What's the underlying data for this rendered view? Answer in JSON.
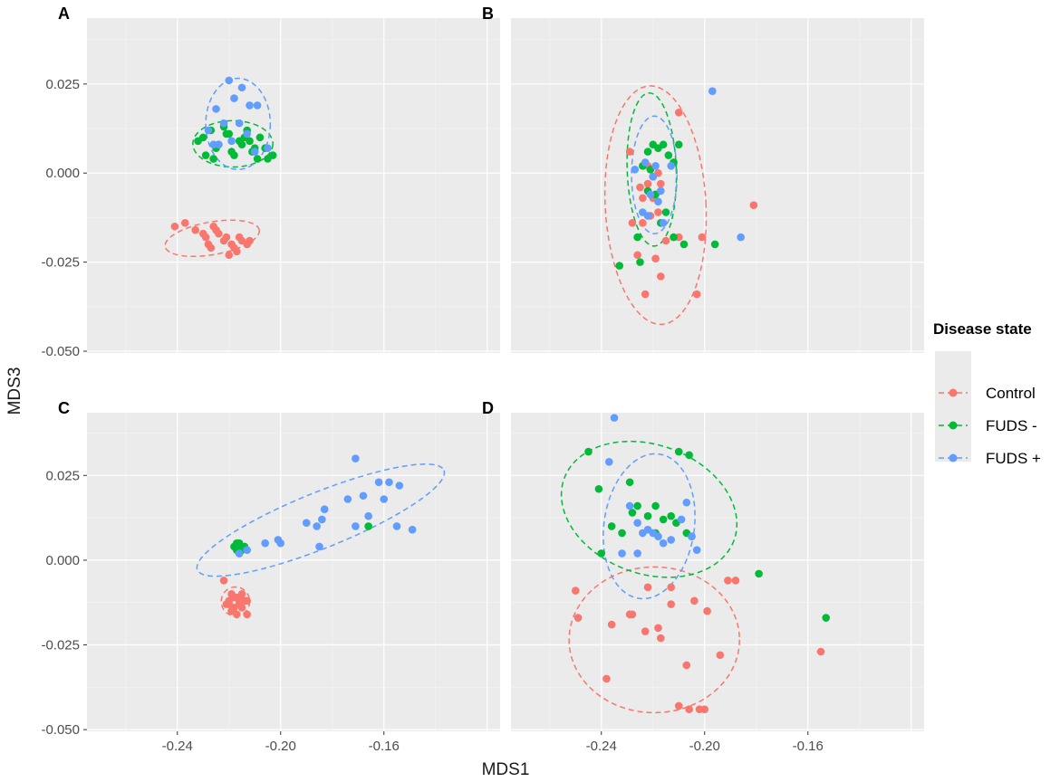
{
  "chart_data": {
    "type": "scatter",
    "xlabel": "MDS1",
    "ylabel": "MDS3",
    "xlim": [
      -0.275,
      -0.115
    ],
    "ylim": [
      -0.0505,
      0.0435
    ],
    "x_ticks": [
      -0.24,
      -0.2,
      -0.16
    ],
    "x_tick_labels": [
      "-0.24",
      "-0.20",
      "-0.16"
    ],
    "y_ticks": [
      0.025,
      0.0,
      -0.025,
      -0.05
    ],
    "y_tick_labels": [
      "0.025",
      "0.000",
      "-0.025",
      "-0.050"
    ],
    "grid": true,
    "ellipse_style": "dashed",
    "legend": {
      "title": "Disease state",
      "position": "right",
      "entries": [
        {
          "name": "Control",
          "color": "#F8766D"
        },
        {
          "name": "FUDS -",
          "color": "#00BA38"
        },
        {
          "name": "FUDS +",
          "color": "#619CFF"
        }
      ]
    },
    "panels": [
      {
        "tag": "A",
        "series": [
          {
            "name": "Control",
            "x": [
              -0.241,
              -0.237,
              -0.233,
              -0.229,
              -0.226,
              -0.227,
              -0.222,
              -0.219,
              -0.216,
              -0.213,
              -0.22,
              -0.224,
              -0.218,
              -0.215,
              -0.212,
              -0.228,
              -0.23,
              -0.221,
              -0.217,
              -0.225
            ],
            "y": [
              -0.015,
              -0.014,
              -0.016,
              -0.018,
              -0.015,
              -0.021,
              -0.019,
              -0.02,
              -0.018,
              -0.02,
              -0.023,
              -0.017,
              -0.021,
              -0.019,
              -0.019,
              -0.02,
              -0.017,
              -0.018,
              -0.022,
              -0.016
            ],
            "ellipse": {
              "cx": -0.2265,
              "cy": -0.0183,
              "rx": 0.0185,
              "ry": 0.0046,
              "angle_deg": -10
            }
          },
          {
            "name": "FUDS -",
            "x": [
              -0.23,
              -0.227,
              -0.224,
              -0.221,
              -0.219,
              -0.216,
              -0.213,
              -0.21,
              -0.208,
              -0.205,
              -0.203,
              -0.229,
              -0.226,
              -0.222,
              -0.218,
              -0.215,
              -0.212,
              -0.209,
              -0.206,
              -0.232,
              -0.225,
              -0.22,
              -0.214,
              -0.211
            ],
            "y": [
              0.01,
              0.012,
              0.008,
              0.011,
              0.006,
              0.009,
              0.012,
              0.007,
              0.01,
              0.004,
              0.005,
              0.005,
              0.004,
              0.013,
              0.005,
              0.008,
              0.009,
              0.004,
              0.007,
              0.009,
              0.007,
              0.011,
              0.01,
              0.006
            ],
            "ellipse": {
              "cx": -0.2185,
              "cy": 0.0082,
              "rx": 0.0155,
              "ry": 0.0065,
              "angle_deg": 0
            }
          },
          {
            "name": "FUDS +",
            "x": [
              -0.22,
              -0.215,
              -0.225,
              -0.218,
              -0.212,
              -0.209,
              -0.228,
              -0.222,
              -0.216,
              -0.213,
              -0.21,
              -0.205,
              -0.224,
              -0.219,
              -0.226
            ],
            "y": [
              0.026,
              0.024,
              0.018,
              0.021,
              0.019,
              0.019,
              0.012,
              0.014,
              0.014,
              0.011,
              0.006,
              0.007,
              0.008,
              0.009,
              0.008
            ],
            "ellipse": {
              "cx": -0.2165,
              "cy": 0.0138,
              "rx": 0.0125,
              "ry": 0.0128,
              "angle_deg": 0
            }
          }
        ]
      },
      {
        "tag": "B",
        "series": [
          {
            "name": "Control",
            "x": [
              -0.181,
              -0.21,
              -0.229,
              -0.225,
              -0.222,
              -0.22,
              -0.218,
              -0.221,
              -0.224,
              -0.215,
              -0.219,
              -0.217,
              -0.226,
              -0.223,
              -0.21,
              -0.203,
              -0.201,
              -0.222,
              -0.218,
              -0.22,
              -0.217,
              -0.224,
              -0.228
            ],
            "y": [
              -0.009,
              0.017,
              0.006,
              -0.004,
              -0.003,
              -0.007,
              -0.011,
              -0.012,
              -0.014,
              -0.019,
              -0.024,
              -0.029,
              -0.023,
              -0.034,
              -0.018,
              -0.034,
              -0.018,
              0.002,
              0.0,
              -0.001,
              -0.003,
              -0.007,
              -0.014
            ],
            "ellipse": {
              "cx": -0.219,
              "cy": -0.009,
              "rx": 0.0195,
              "ry": 0.0335,
              "angle_deg": -3
            }
          },
          {
            "name": "FUDS -",
            "x": [
              -0.233,
              -0.225,
              -0.222,
              -0.22,
              -0.218,
              -0.216,
              -0.214,
              -0.212,
              -0.21,
              -0.221,
              -0.224,
              -0.219,
              -0.222,
              -0.217,
              -0.215,
              -0.226,
              -0.208,
              -0.196,
              -0.212
            ],
            "y": [
              -0.026,
              -0.025,
              0.006,
              0.008,
              0.007,
              0.008,
              0.005,
              0.003,
              0.008,
              0.001,
              0.002,
              -0.006,
              -0.005,
              -0.014,
              -0.011,
              -0.018,
              -0.02,
              -0.02,
              -0.018
            ],
            "ellipse": {
              "cx": -0.2205,
              "cy": 0.001,
              "rx": 0.0095,
              "ry": 0.0215,
              "angle_deg": -2
            }
          },
          {
            "name": "FUDS +",
            "x": [
              -0.197,
              -0.186,
              -0.227,
              -0.223,
              -0.219,
              -0.217,
              -0.221,
              -0.218,
              -0.224,
              -0.216,
              -0.213,
              -0.22,
              -0.222
            ],
            "y": [
              0.023,
              -0.018,
              0.001,
              0.003,
              0.002,
              -0.005,
              -0.006,
              -0.008,
              -0.011,
              -0.014,
              0.002,
              -0.001,
              -0.012
            ],
            "ellipse": {
              "cx": -0.2195,
              "cy": -0.0005,
              "rx": 0.0088,
              "ry": 0.0165,
              "angle_deg": 0
            }
          }
        ]
      },
      {
        "tag": "C",
        "series": [
          {
            "name": "Control",
            "x": [
              -0.222,
              -0.219,
              -0.217,
              -0.215,
              -0.213,
              -0.22,
              -0.218,
              -0.216,
              -0.214,
              -0.221,
              -0.219,
              -0.217,
              -0.215,
              -0.213,
              -0.218,
              -0.216,
              -0.22
            ],
            "y": [
              -0.006,
              -0.01,
              -0.011,
              -0.01,
              -0.012,
              -0.013,
              -0.014,
              -0.013,
              -0.012,
              -0.013,
              -0.015,
              -0.016,
              -0.014,
              -0.016,
              -0.011,
              -0.012,
              -0.012
            ],
            "ellipse": {
              "cx": -0.2175,
              "cy": -0.0122,
              "rx": 0.0055,
              "ry": 0.0043,
              "angle_deg": 0
            }
          },
          {
            "name": "FUDS -",
            "x": [
              -0.218,
              -0.216,
              -0.217,
              -0.215,
              -0.216,
              -0.214,
              -0.217,
              -0.215,
              -0.166
            ],
            "y": [
              0.004,
              0.005,
              0.003,
              0.004,
              0.002,
              0.004,
              0.005,
              0.003,
              0.01
            ],
            "ellipse": null
          },
          {
            "name": "FUDS +",
            "x": [
              -0.216,
              -0.213,
              -0.206,
              -0.201,
              -0.2,
              -0.19,
              -0.186,
              -0.184,
              -0.183,
              -0.185,
              -0.174,
              -0.171,
              -0.168,
              -0.166,
              -0.162,
              -0.158,
              -0.154,
              -0.171,
              -0.16,
              -0.149,
              -0.155
            ],
            "y": [
              0.002,
              0.003,
              0.005,
              0.006,
              0.005,
              0.011,
              0.01,
              0.012,
              0.015,
              0.004,
              0.018,
              0.03,
              0.019,
              0.013,
              0.023,
              0.023,
              0.022,
              0.01,
              0.018,
              0.009,
              0.01
            ],
            "ellipse": {
              "cx": -0.1845,
              "cy": 0.0118,
              "rx": 0.0515,
              "ry": 0.0082,
              "angle_deg": -22
            }
          }
        ]
      },
      {
        "tag": "D",
        "series": [
          {
            "name": "Control",
            "x": [
              -0.25,
              -0.249,
              -0.236,
              -0.238,
              -0.229,
              -0.223,
              -0.222,
              -0.218,
              -0.217,
              -0.213,
              -0.21,
              -0.207,
              -0.204,
              -0.202,
              -0.199,
              -0.194,
              -0.191,
              -0.206,
              -0.2,
              -0.188,
              -0.155,
              -0.228,
              -0.213
            ],
            "y": [
              -0.009,
              -0.017,
              -0.019,
              -0.035,
              -0.016,
              -0.021,
              -0.008,
              -0.02,
              -0.023,
              -0.013,
              -0.043,
              -0.031,
              -0.012,
              -0.044,
              -0.015,
              -0.028,
              -0.006,
              -0.044,
              -0.044,
              -0.006,
              -0.027,
              -0.016,
              -0.008
            ],
            "ellipse": {
              "cx": -0.2195,
              "cy": -0.0235,
              "rx": 0.033,
              "ry": 0.0215,
              "angle_deg": 0
            }
          },
          {
            "name": "FUDS -",
            "x": [
              -0.245,
              -0.241,
              -0.232,
              -0.229,
              -0.226,
              -0.222,
              -0.219,
              -0.216,
              -0.213,
              -0.211,
              -0.207,
              -0.206,
              -0.205,
              -0.24,
              -0.236,
              -0.21,
              -0.179,
              -0.153,
              -0.228,
              -0.219
            ],
            "y": [
              0.032,
              0.021,
              0.008,
              0.023,
              0.016,
              0.013,
              0.016,
              0.012,
              0.013,
              0.011,
              0.008,
              0.031,
              0.007,
              0.002,
              0.01,
              0.032,
              -0.004,
              -0.017,
              0.014,
              0.008
            ],
            "ellipse": {
              "cx": -0.2215,
              "cy": 0.015,
              "rx": 0.035,
              "ry": 0.019,
              "angle_deg": 20
            }
          },
          {
            "name": "FUDS +",
            "x": [
              -0.235,
              -0.237,
              -0.229,
              -0.226,
              -0.224,
              -0.222,
              -0.22,
              -0.218,
              -0.216,
              -0.213,
              -0.209,
              -0.207,
              -0.205,
              -0.203,
              -0.226,
              -0.232
            ],
            "y": [
              0.042,
              0.029,
              0.016,
              0.011,
              0.008,
              0.009,
              0.008,
              0.007,
              0.005,
              0.006,
              0.012,
              0.017,
              0.007,
              0.003,
              0.002,
              0.002
            ],
            "ellipse": {
              "cx": -0.2215,
              "cy": 0.01,
              "rx": 0.0175,
              "ry": 0.0215,
              "angle_deg": 8
            }
          }
        ]
      }
    ]
  }
}
